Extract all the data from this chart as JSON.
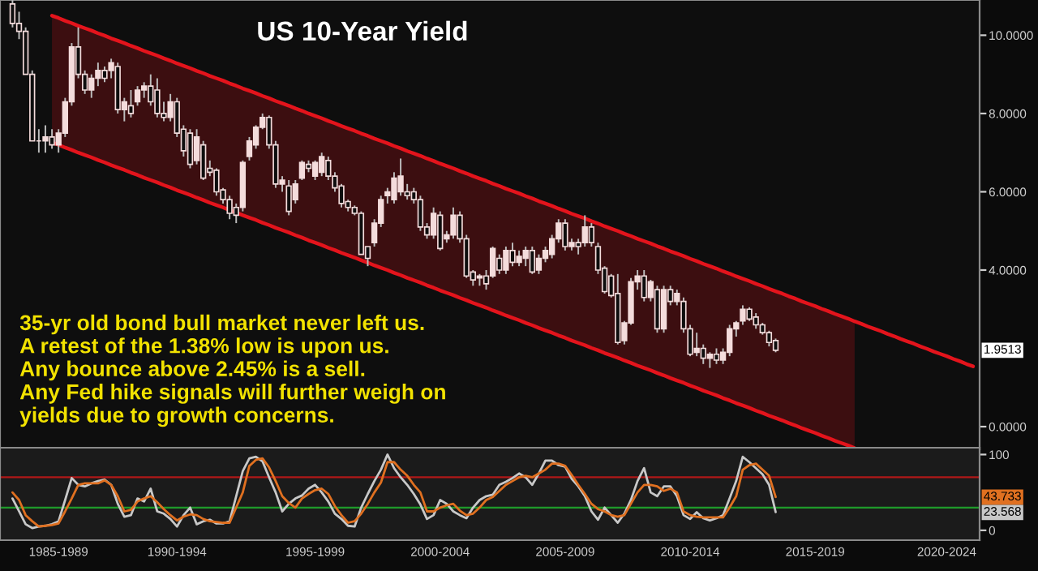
{
  "chart_data": [
    {
      "type": "candlestick",
      "title": "US 10-Year Yield",
      "color": "#f4dcdc",
      "categories": [
        null,
        null,
        null,
        null,
        null,
        null,
        null,
        null,
        null,
        null,
        null,
        null,
        null,
        null,
        null,
        null,
        null,
        null,
        null,
        null,
        null,
        null,
        null,
        null,
        null,
        null,
        null,
        null,
        null,
        null,
        null,
        null,
        null,
        null,
        null,
        null,
        null,
        null,
        null,
        null,
        null,
        null,
        null,
        null,
        null,
        null,
        null,
        null,
        null,
        null,
        null,
        null,
        null,
        null,
        null,
        null,
        null,
        null,
        null,
        null,
        null,
        null,
        null,
        null,
        null,
        null,
        null,
        null,
        null,
        null,
        null,
        null,
        null,
        null,
        null,
        null,
        null,
        null,
        null,
        null,
        null,
        null,
        null,
        null,
        null,
        null,
        null,
        null,
        null,
        null,
        null,
        null,
        null,
        null,
        null,
        null,
        null,
        null,
        null,
        null,
        null,
        null,
        null,
        null,
        null,
        null,
        null,
        null,
        null,
        null,
        null,
        null,
        null,
        null,
        null,
        null,
        null,
        null,
        null,
        null,
        null,
        null,
        null,
        null,
        null,
        null,
        null,
        null,
        null,
        null,
        null,
        null,
        null,
        null,
        null,
        null,
        null,
        null,
        null,
        null,
        null,
        null,
        null,
        null,
        null,
        null,
        null
      ],
      "ohlc": [
        [
          10.8,
          10.9,
          10.2,
          10.3
        ],
        [
          10.3,
          10.6,
          9.9,
          10.1
        ],
        [
          10.1,
          10.2,
          9.0,
          9.0
        ],
        [
          9.0,
          9.1,
          7.3,
          7.3
        ],
        [
          7.3,
          7.6,
          7.0,
          7.3
        ],
        [
          7.3,
          7.7,
          7.0,
          7.4
        ],
        [
          7.4,
          7.6,
          7.1,
          7.2
        ],
        [
          7.2,
          7.6,
          7.0,
          7.5
        ],
        [
          7.5,
          8.4,
          7.4,
          8.3
        ],
        [
          8.3,
          9.8,
          8.2,
          9.7
        ],
        [
          9.7,
          10.2,
          8.9,
          9.0
        ],
        [
          9.0,
          9.1,
          8.5,
          8.6
        ],
        [
          8.6,
          9.0,
          8.4,
          8.9
        ],
        [
          8.9,
          9.3,
          8.7,
          9.1
        ],
        [
          9.1,
          9.2,
          8.8,
          8.9
        ],
        [
          9.1,
          9.4,
          8.9,
          9.3
        ],
        [
          9.2,
          9.3,
          8.0,
          8.1
        ],
        [
          8.1,
          8.4,
          7.8,
          8.3
        ],
        [
          8.2,
          8.6,
          7.9,
          8.0
        ],
        [
          8.3,
          8.7,
          8.2,
          8.6
        ],
        [
          8.6,
          8.8,
          8.4,
          8.7
        ],
        [
          8.7,
          9.0,
          8.2,
          8.3
        ],
        [
          8.6,
          8.9,
          7.9,
          8.0
        ],
        [
          8.0,
          8.3,
          7.8,
          7.9
        ],
        [
          7.9,
          8.5,
          7.8,
          8.3
        ],
        [
          8.3,
          8.4,
          7.4,
          7.5
        ],
        [
          7.6,
          7.7,
          6.9,
          7.05
        ],
        [
          7.5,
          7.6,
          6.6,
          6.7
        ],
        [
          6.8,
          7.6,
          6.7,
          7.4
        ],
        [
          7.2,
          7.3,
          6.3,
          6.35
        ],
        [
          6.6,
          6.8,
          6.4,
          6.5
        ],
        [
          6.55,
          6.6,
          5.9,
          6.0
        ],
        [
          6.05,
          6.1,
          5.7,
          5.8
        ],
        [
          5.8,
          5.9,
          5.3,
          5.45
        ],
        [
          5.6,
          5.7,
          5.2,
          5.4
        ],
        [
          5.6,
          6.8,
          5.5,
          6.75
        ],
        [
          6.9,
          7.4,
          6.8,
          7.3
        ],
        [
          7.2,
          7.7,
          7.1,
          7.65
        ],
        [
          7.65,
          8.0,
          7.6,
          7.9
        ],
        [
          7.9,
          7.95,
          7.1,
          7.2
        ],
        [
          7.2,
          7.3,
          6.1,
          6.2
        ],
        [
          6.2,
          6.4,
          6.0,
          6.3
        ],
        [
          6.15,
          6.3,
          5.4,
          5.5
        ],
        [
          5.8,
          6.3,
          5.7,
          6.2
        ],
        [
          6.35,
          6.8,
          6.3,
          6.75
        ],
        [
          6.7,
          6.8,
          6.5,
          6.6
        ],
        [
          6.4,
          6.8,
          6.3,
          6.75
        ],
        [
          6.5,
          7.0,
          6.4,
          6.9
        ],
        [
          6.8,
          6.9,
          6.3,
          6.4
        ],
        [
          6.4,
          6.5,
          6.0,
          6.1
        ],
        [
          6.15,
          6.2,
          5.6,
          5.7
        ],
        [
          5.75,
          5.8,
          5.5,
          5.6
        ],
        [
          5.6,
          5.65,
          5.4,
          5.45
        ],
        [
          5.45,
          5.5,
          4.4,
          4.4
        ],
        [
          4.6,
          4.6,
          4.1,
          4.3
        ],
        [
          4.7,
          5.3,
          4.6,
          5.2
        ],
        [
          5.2,
          5.9,
          5.1,
          5.8
        ],
        [
          5.9,
          6.1,
          5.7,
          6.0
        ],
        [
          5.8,
          6.5,
          5.7,
          6.35
        ],
        [
          6.0,
          6.85,
          5.9,
          6.4
        ],
        [
          6.0,
          6.2,
          5.8,
          5.9
        ],
        [
          6.0,
          6.1,
          5.7,
          5.8
        ],
        [
          5.8,
          5.9,
          5.0,
          5.1
        ],
        [
          5.1,
          5.2,
          4.8,
          4.9
        ],
        [
          4.9,
          5.6,
          4.8,
          5.45
        ],
        [
          5.4,
          5.5,
          4.5,
          4.55
        ],
        [
          4.8,
          5.0,
          4.7,
          4.9
        ],
        [
          4.9,
          5.6,
          4.8,
          5.4
        ],
        [
          5.4,
          5.5,
          4.7,
          4.8
        ],
        [
          4.8,
          4.9,
          3.8,
          3.85
        ],
        [
          3.95,
          4.0,
          3.6,
          3.75
        ],
        [
          3.8,
          3.9,
          3.6,
          3.85
        ],
        [
          3.85,
          4.0,
          3.5,
          3.65
        ],
        [
          3.85,
          4.6,
          3.8,
          4.55
        ],
        [
          4.3,
          4.4,
          3.9,
          4.0
        ],
        [
          4.0,
          4.6,
          3.9,
          4.5
        ],
        [
          4.5,
          4.7,
          4.1,
          4.2
        ],
        [
          4.2,
          4.5,
          4.1,
          4.35
        ],
        [
          4.3,
          4.6,
          4.1,
          4.5
        ],
        [
          4.5,
          4.6,
          3.9,
          3.95
        ],
        [
          4.0,
          4.4,
          3.9,
          4.3
        ],
        [
          4.3,
          4.6,
          4.2,
          4.5
        ],
        [
          4.4,
          4.9,
          4.3,
          4.8
        ],
        [
          4.8,
          5.3,
          4.7,
          5.2
        ],
        [
          5.2,
          5.3,
          4.5,
          4.6
        ],
        [
          4.6,
          4.8,
          4.5,
          4.7
        ],
        [
          4.7,
          4.8,
          4.4,
          4.6
        ],
        [
          4.7,
          5.4,
          4.6,
          5.1
        ],
        [
          5.1,
          5.2,
          4.6,
          4.7
        ],
        [
          4.6,
          4.7,
          3.9,
          4.0
        ],
        [
          4.05,
          4.1,
          3.4,
          3.45
        ],
        [
          3.85,
          3.9,
          3.3,
          3.35
        ],
        [
          3.4,
          3.9,
          2.1,
          2.15
        ],
        [
          2.2,
          2.7,
          2.1,
          2.65
        ],
        [
          2.65,
          3.8,
          2.6,
          3.7
        ],
        [
          3.7,
          4.0,
          3.5,
          3.85
        ],
        [
          3.85,
          4.0,
          3.2,
          3.3
        ],
        [
          3.3,
          3.75,
          3.2,
          3.7
        ],
        [
          3.5,
          3.6,
          2.4,
          2.5
        ],
        [
          2.5,
          3.6,
          2.4,
          3.5
        ],
        [
          3.5,
          3.6,
          3.1,
          3.2
        ],
        [
          3.2,
          3.5,
          3.1,
          3.4
        ],
        [
          3.2,
          3.3,
          2.4,
          2.5
        ],
        [
          2.5,
          2.6,
          1.8,
          1.85
        ],
        [
          1.9,
          2.4,
          1.8,
          2.0
        ],
        [
          2.0,
          2.1,
          1.6,
          1.75
        ],
        [
          1.75,
          1.9,
          1.5,
          1.85
        ],
        [
          1.85,
          2.0,
          1.6,
          1.7
        ],
        [
          1.7,
          2.0,
          1.6,
          1.9
        ],
        [
          1.9,
          2.6,
          1.8,
          2.5
        ],
        [
          2.5,
          2.7,
          2.3,
          2.65
        ],
        [
          2.7,
          3.1,
          2.6,
          3.0
        ],
        [
          3.0,
          3.05,
          2.7,
          2.75
        ],
        [
          2.8,
          2.9,
          2.5,
          2.6
        ],
        [
          2.6,
          2.65,
          2.35,
          2.4
        ],
        [
          2.4,
          2.45,
          2.05,
          2.15
        ],
        [
          2.2,
          2.25,
          1.9,
          1.95
        ],
        null,
        null,
        null,
        null,
        null,
        null,
        null,
        null,
        null,
        null,
        null,
        null,
        null,
        null,
        null,
        null,
        null,
        null,
        null,
        null,
        null,
        null,
        null,
        null,
        null,
        null,
        null,
        null,
        null,
        null
      ],
      "series": [
        {
          "type": "line",
          "color": "#e3141c",
          "values": [
            null,
            null,
            null,
            null,
            null,
            null,
            10.5,
            10.44,
            10.37,
            10.31,
            10.24,
            10.18,
            10.12,
            10.05,
            9.99,
            9.92,
            9.86,
            9.8,
            9.73,
            9.67,
            9.6,
            9.54,
            9.48,
            9.41,
            9.35,
            9.28,
            9.22,
            9.16,
            9.09,
            9.03,
            8.96,
            8.9,
            8.84,
            8.77,
            8.71,
            8.64,
            8.58,
            8.52,
            8.45,
            8.39,
            8.32,
            8.26,
            8.2,
            8.13,
            8.07,
            8.0,
            7.94,
            7.88,
            7.81,
            7.75,
            7.68,
            7.62,
            7.56,
            7.49,
            7.43,
            7.36,
            7.3,
            7.24,
            7.17,
            7.11,
            7.04,
            6.98,
            6.92,
            6.85,
            6.79,
            6.72,
            6.66,
            6.6,
            6.53,
            6.47,
            6.4,
            6.34,
            6.28,
            6.21,
            6.15,
            6.08,
            6.02,
            5.96,
            5.89,
            5.83,
            5.76,
            5.7,
            5.64,
            5.57,
            5.51,
            5.44,
            5.38,
            5.32,
            5.25,
            5.19,
            5.12,
            5.06,
            5.0,
            4.93,
            4.87,
            4.8,
            4.74,
            4.68,
            4.61,
            4.55,
            4.48,
            4.42,
            4.36,
            4.29,
            4.23,
            4.16,
            4.1,
            4.04,
            3.97,
            3.91,
            3.84,
            3.78,
            3.72,
            3.65,
            3.59,
            3.52,
            3.46,
            3.4,
            3.33,
            3.27,
            3.2,
            3.14,
            3.08,
            3.01,
            2.95,
            2.88,
            2.82,
            2.76,
            2.69,
            2.63,
            2.56,
            2.5,
            2.44,
            2.37,
            2.31,
            2.24,
            2.18,
            2.12,
            2.05,
            1.99,
            1.92,
            1.86,
            1.8,
            1.73,
            1.67,
            1.6,
            1.54
          ]
        },
        {
          "type": "line",
          "color": "#e3141c",
          "values": [
            null,
            null,
            null,
            null,
            null,
            null,
            7.26,
            7.2,
            7.13,
            7.07,
            7.0,
            6.94,
            6.88,
            6.81,
            6.75,
            6.68,
            6.62,
            6.56,
            6.49,
            6.43,
            6.36,
            6.3,
            6.24,
            6.17,
            6.11,
            6.04,
            5.98,
            5.92,
            5.85,
            5.79,
            5.72,
            5.66,
            5.6,
            5.53,
            5.47,
            5.4,
            5.34,
            5.28,
            5.21,
            5.15,
            5.08,
            5.02,
            4.96,
            4.89,
            4.83,
            4.76,
            4.7,
            4.64,
            4.57,
            4.51,
            4.44,
            4.38,
            4.32,
            4.25,
            4.19,
            4.12,
            4.06,
            4.0,
            3.93,
            3.87,
            3.8,
            3.74,
            3.68,
            3.61,
            3.55,
            3.48,
            3.42,
            3.36,
            3.29,
            3.23,
            3.16,
            3.1,
            3.04,
            2.97,
            2.91,
            2.84,
            2.78,
            2.72,
            2.65,
            2.59,
            2.52,
            2.46,
            2.4,
            2.33,
            2.27,
            2.2,
            2.14,
            2.08,
            2.01,
            1.95,
            1.88,
            1.82,
            1.76,
            1.69,
            1.63,
            1.56,
            1.5,
            1.44,
            1.37,
            1.31,
            1.24,
            1.18,
            1.12,
            1.05,
            0.99,
            0.92,
            0.86,
            0.8,
            0.73,
            0.67,
            0.6,
            0.54,
            0.48,
            0.41,
            0.35,
            0.28,
            0.22,
            0.16,
            0.09,
            0.03,
            -0.04,
            -0.1,
            -0.16,
            -0.23,
            -0.29,
            -0.36,
            -0.42,
            -0.48,
            -0.55,
            null,
            null,
            null,
            null,
            null,
            null,
            null,
            null,
            null,
            null,
            null,
            null,
            null,
            null,
            null,
            null,
            null,
            null
          ],
          "lower": [
            null,
            null,
            null,
            null,
            null,
            null,
            7.26,
            7.2,
            7.13,
            7.07,
            7.0,
            6.94,
            6.88,
            6.81,
            6.75,
            6.68,
            6.62,
            6.56,
            6.49,
            6.43,
            6.36,
            6.3,
            6.24,
            6.17,
            6.11,
            6.04,
            5.98,
            5.92,
            5.85,
            5.79,
            5.72,
            5.66,
            5.6,
            5.53,
            5.47,
            5.4,
            5.34,
            5.28,
            5.21,
            5.15,
            5.08,
            5.02,
            4.96,
            4.89,
            4.83,
            4.76,
            4.7,
            4.64,
            4.57,
            4.51,
            4.44,
            4.38,
            4.32,
            4.25,
            4.19,
            4.12,
            4.06,
            4.0,
            3.93,
            3.87,
            3.8,
            3.74,
            3.68,
            3.61,
            3.55,
            3.48,
            3.42,
            3.36,
            3.29,
            3.23,
            3.16,
            3.1,
            3.04,
            2.97,
            2.91,
            2.84,
            2.78,
            2.72,
            2.65,
            2.59,
            2.52,
            2.46,
            2.4,
            2.33,
            2.27,
            2.2,
            2.14,
            2.08,
            2.01,
            1.95,
            1.88,
            1.82,
            1.76,
            1.69,
            1.63,
            1.56,
            1.5,
            1.44,
            1.37,
            1.31,
            1.24,
            1.18,
            1.12,
            1.05,
            0.99,
            0.92,
            0.86,
            0.8,
            0.73,
            0.67,
            0.6,
            0.54,
            0.48,
            0.41,
            0.35,
            0.28,
            0.22,
            0.16,
            0.09,
            0.03,
            -0.04,
            -0.1,
            -0.16,
            -0.23,
            -0.29,
            -0.36,
            -0.42,
            -0.48,
            -0.55,
            null,
            null,
            null,
            null,
            null,
            null,
            null,
            null,
            null,
            null,
            null,
            null,
            null,
            null,
            null,
            null,
            null,
            null
          ],
          "upper": [
            null,
            null,
            null,
            null,
            null,
            null,
            10.5,
            10.44,
            10.37,
            10.31,
            10.24,
            10.18,
            10.12,
            10.05,
            9.99,
            9.92,
            9.86,
            9.8,
            9.73,
            9.67,
            9.6,
            9.54,
            9.48,
            9.41,
            9.35,
            9.28,
            9.22,
            9.16,
            9.09,
            9.03,
            8.96,
            8.9,
            8.84,
            8.77,
            8.71,
            8.64,
            8.58,
            8.52,
            8.45,
            8.39,
            8.32,
            8.26,
            8.2,
            8.13,
            8.07,
            8.0,
            7.94,
            7.88,
            7.81,
            7.75,
            7.68,
            7.62,
            7.56,
            7.49,
            7.43,
            7.36,
            7.3,
            7.24,
            7.17,
            7.11,
            7.04,
            6.98,
            6.92,
            6.85,
            6.79,
            6.72,
            6.66,
            6.6,
            6.53,
            6.47,
            6.4,
            6.34,
            6.28,
            6.21,
            6.15,
            6.08,
            6.02,
            5.96,
            5.89,
            5.83,
            5.76,
            5.7,
            5.64,
            5.57,
            5.51,
            5.44,
            5.38,
            5.32,
            5.25,
            5.19,
            5.12,
            5.06,
            5.0,
            4.93,
            4.87,
            4.8,
            4.74,
            4.68,
            4.61,
            4.55,
            4.48,
            4.42,
            4.36,
            4.29,
            4.23,
            4.16,
            4.1,
            4.04,
            3.97,
            3.91,
            3.84,
            3.78,
            3.72,
            3.65,
            3.59,
            3.52,
            3.46,
            3.4,
            3.33,
            3.27,
            3.2,
            3.14,
            3.08,
            3.01,
            2.95,
            2.88,
            2.82,
            2.76,
            2.69,
            null,
            null,
            null,
            null,
            null,
            null,
            null,
            null,
            null,
            null,
            null,
            null,
            null,
            null,
            null,
            null,
            null,
            null
          ]
        }
      ],
      "annotations": [
        "35-yr old bond bull market never left us.\nA retest of the 1.38% low is upon us.\nAny bounce above 2.45% is a sell.\nAny Fed hike signals will further weigh on\nyields due to growth concerns.",
        "1.9513"
      ],
      "ylim": [
        -0.58,
        10.9
      ],
      "yticks": [
        {
          "value": 0,
          "label": "0.0000"
        },
        {
          "value": 4,
          "label": "4.0000"
        },
        {
          "value": 6,
          "label": "6.0000"
        },
        {
          "value": 8,
          "label": "8.0000"
        },
        {
          "value": 10,
          "label": "10.0000"
        }
      ],
      "tick_labels": "y"
    },
    {
      "type": "line",
      "categories": [
        null,
        null,
        null,
        null,
        null,
        null,
        null,
        "1985-1989",
        null,
        null,
        null,
        null,
        null,
        null,
        null,
        null,
        null,
        null,
        null,
        null,
        null,
        null,
        null,
        null,
        null,
        "1990-1994",
        null,
        null,
        null,
        null,
        null,
        null,
        null,
        null,
        null,
        null,
        null,
        null,
        null,
        null,
        null,
        null,
        null,
        null,
        null,
        null,
        "1995-1999",
        null,
        null,
        null,
        null,
        null,
        null,
        null,
        null,
        null,
        null,
        null,
        null,
        null,
        null,
        null,
        null,
        null,
        null,
        "2000-2004",
        null,
        null,
        null,
        null,
        null,
        null,
        null,
        null,
        null,
        null,
        null,
        null,
        null,
        null,
        null,
        null,
        null,
        null,
        "2005-2009",
        null,
        null,
        null,
        null,
        null,
        null,
        null,
        null,
        null,
        null,
        null,
        null,
        null,
        null,
        null,
        null,
        null,
        null,
        "2010-2014",
        null,
        null,
        null,
        null,
        null,
        null,
        null,
        null,
        null,
        null,
        null,
        null,
        null,
        null,
        null,
        null,
        null,
        null,
        "2015-2019",
        null,
        null,
        null,
        null,
        null,
        null,
        null,
        null,
        null,
        null,
        null,
        null,
        null,
        null,
        null,
        null,
        null,
        null,
        null,
        "2020-2024",
        null,
        null,
        null,
        null
      ],
      "series": [
        {
          "color": "#c8c8c8",
          "values": [
            42,
            25,
            8,
            3,
            5,
            6,
            8,
            12,
            40,
            69,
            60,
            58,
            62,
            65,
            67,
            60,
            35,
            18,
            20,
            42,
            38,
            55,
            25,
            22,
            15,
            5,
            20,
            30,
            8,
            12,
            14,
            9,
            9,
            12,
            45,
            78,
            95,
            97,
            91,
            70,
            50,
            25,
            35,
            42,
            46,
            55,
            60,
            50,
            38,
            22,
            15,
            6,
            5,
            30,
            48,
            65,
            80,
            100,
            82,
            70,
            60,
            48,
            34,
            15,
            20,
            40,
            35,
            25,
            20,
            16,
            30,
            40,
            45,
            47,
            60,
            64,
            69,
            75,
            70,
            60,
            75,
            92,
            92,
            86,
            84,
            68,
            58,
            45,
            25,
            14,
            30,
            20,
            10,
            22,
            40,
            65,
            82,
            50,
            45,
            58,
            58,
            45,
            20,
            15,
            24,
            16,
            13,
            16,
            20,
            42,
            65,
            97,
            90,
            82,
            74,
            60,
            24,
            null,
            null,
            null,
            null,
            null,
            null,
            null,
            null,
            null,
            null,
            null,
            null,
            null,
            null,
            null,
            null,
            null,
            null,
            null,
            null,
            null,
            null,
            null,
            null,
            null,
            null,
            null,
            null,
            null,
            null
          ]
        },
        {
          "color": "#e07020",
          "values": [
            50,
            40,
            20,
            12,
            5,
            6,
            7,
            9,
            25,
            42,
            60,
            62,
            62,
            62,
            66,
            60,
            45,
            25,
            27,
            38,
            42,
            45,
            37,
            28,
            20,
            13,
            18,
            21,
            20,
            15,
            12,
            11,
            10,
            10,
            30,
            50,
            85,
            93,
            95,
            83,
            65,
            45,
            36,
            30,
            42,
            48,
            53,
            55,
            48,
            32,
            20,
            10,
            12,
            22,
            35,
            50,
            63,
            90,
            90,
            80,
            72,
            60,
            50,
            25,
            25,
            30,
            33,
            35,
            26,
            20,
            22,
            30,
            40,
            44,
            52,
            60,
            65,
            70,
            72,
            70,
            75,
            80,
            88,
            88,
            85,
            73,
            60,
            48,
            35,
            28,
            25,
            20,
            18,
            20,
            35,
            50,
            60,
            60,
            58,
            52,
            55,
            50,
            25,
            20,
            18,
            17,
            17,
            17,
            17,
            30,
            45,
            80,
            86,
            88,
            80,
            72,
            44,
            null,
            null,
            null,
            null,
            null,
            null,
            null,
            null,
            null,
            null,
            null,
            null,
            null,
            null,
            null,
            null,
            null,
            null,
            null,
            null,
            null,
            null,
            null,
            null,
            null,
            null,
            null,
            null,
            null,
            null
          ]
        }
      ],
      "ref_lines": [
        {
          "axis": "y",
          "value": 70,
          "color": "#b01818"
        },
        {
          "axis": "y",
          "value": 30,
          "color": "#1f9a2a"
        }
      ],
      "annotations": [
        "43.733",
        "23.568"
      ],
      "ylim": [
        -13,
        109
      ],
      "yticks": [
        0,
        100
      ]
    }
  ]
}
